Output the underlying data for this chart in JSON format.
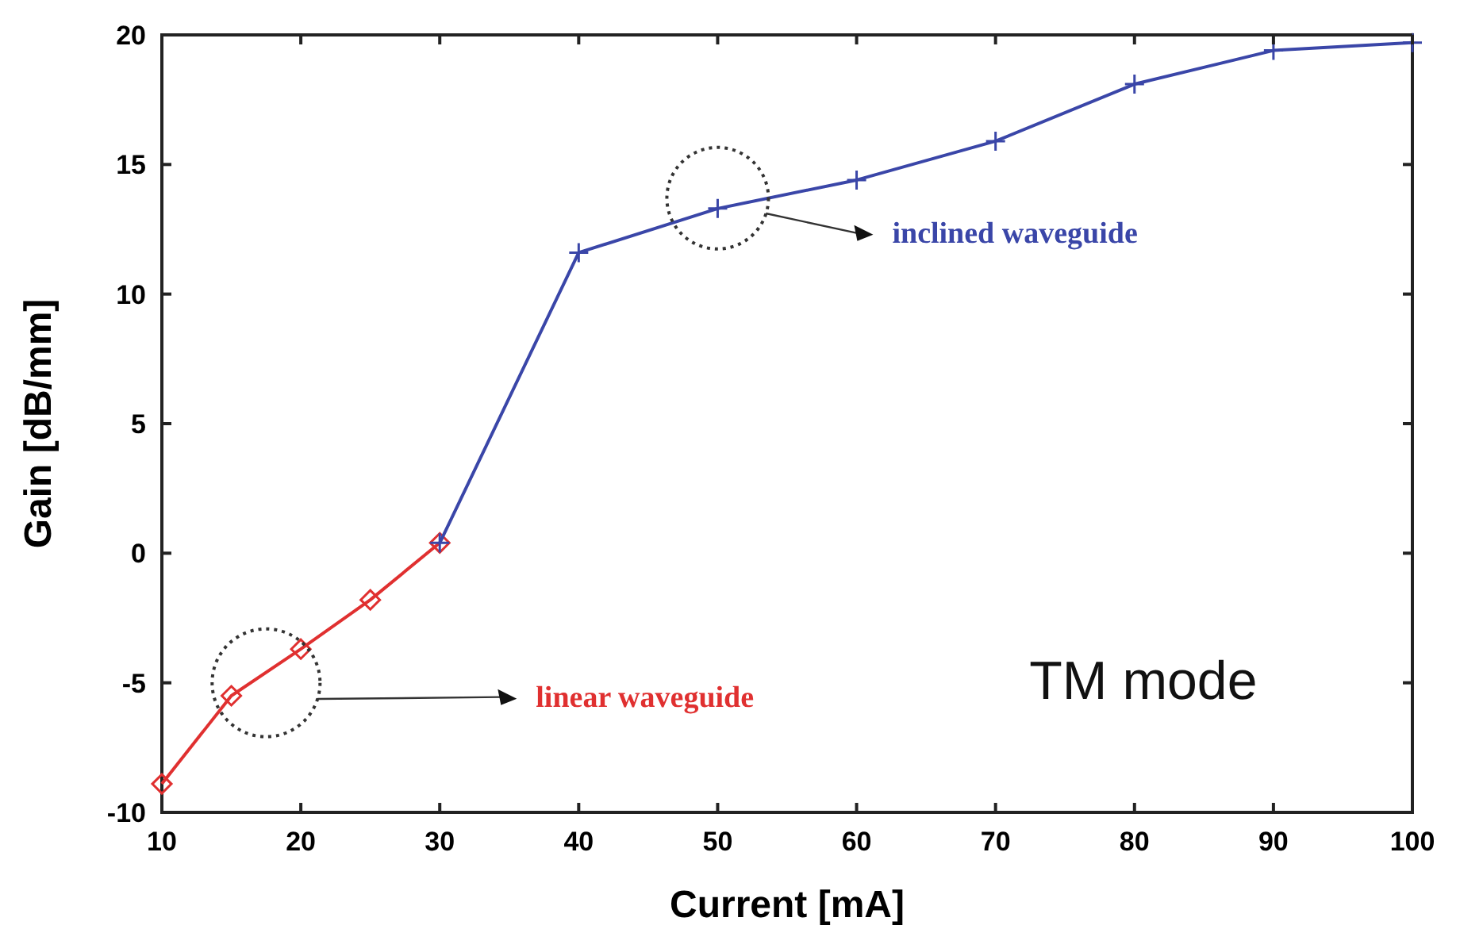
{
  "chart_data": {
    "type": "line",
    "xlabel": "Current [mA]",
    "ylabel": "Gain [dB/mm]",
    "xlim": [
      10,
      100
    ],
    "xticks": [
      10,
      20,
      30,
      40,
      50,
      60,
      70,
      80,
      90,
      100
    ],
    "ylim": [
      -10,
      20
    ],
    "yticks": [
      -10,
      -5,
      0,
      5,
      10,
      15,
      20
    ],
    "series": [
      {
        "name": "linear waveguide",
        "color": "#e03030",
        "marker": "diamond",
        "x": [
          10,
          15,
          20,
          25,
          30
        ],
        "values": [
          -8.9,
          -5.5,
          -3.7,
          -1.8,
          0.4
        ]
      },
      {
        "name": "inclined waveguide",
        "color": "#3a46a8",
        "marker": "cross",
        "x": [
          30,
          40,
          50,
          60,
          70,
          80,
          90,
          100
        ],
        "values": [
          0.4,
          11.6,
          13.3,
          14.4,
          15.9,
          18.1,
          19.4,
          19.7
        ]
      }
    ],
    "annotations": [
      "TM mode"
    ],
    "grid": false
  }
}
